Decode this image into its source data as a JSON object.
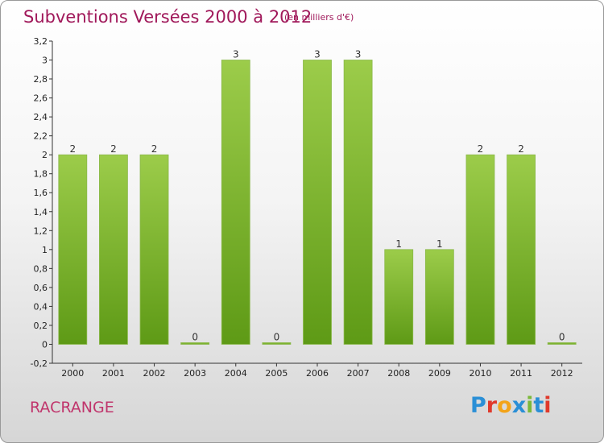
{
  "header": {
    "title": "Subventions Versées 2000 à 2012",
    "subtitle": "(en milliers d'€)"
  },
  "footer": {
    "commune": "RACRANGE",
    "brand": {
      "letters": [
        "P",
        "r",
        "o",
        "x",
        "i",
        "t",
        "i"
      ],
      "colors": [
        "#2a8fd6",
        "#e0392b",
        "#f3a41a",
        "#2a8fd6",
        "#7bb93a",
        "#2a8fd6",
        "#e0392b"
      ]
    }
  },
  "chart_data": {
    "type": "bar",
    "categories": [
      "2000",
      "2001",
      "2002",
      "2003",
      "2004",
      "2005",
      "2006",
      "2007",
      "2008",
      "2009",
      "2010",
      "2011",
      "2012"
    ],
    "values": [
      2,
      2,
      2,
      0,
      3,
      0,
      3,
      3,
      1,
      1,
      2,
      2,
      0
    ],
    "data_labels": [
      "2",
      "2",
      "2",
      "0",
      "3",
      "0",
      "3",
      "3",
      "1",
      "1",
      "2",
      "2",
      "0"
    ],
    "ylim": [
      -0.2,
      3.2
    ],
    "yticks": [
      "-0,2",
      "0",
      "0,2",
      "0,4",
      "0,6",
      "0,8",
      "1",
      "1,2",
      "1,4",
      "1,6",
      "1,8",
      "2",
      "2,2",
      "2,4",
      "2,6",
      "2,8",
      "3",
      "3,2"
    ],
    "title": "Subventions Versées 2000 à 2012",
    "bar_color_light": "#9ccc4a",
    "bar_color_dark": "#5e9a16",
    "grid": false
  }
}
